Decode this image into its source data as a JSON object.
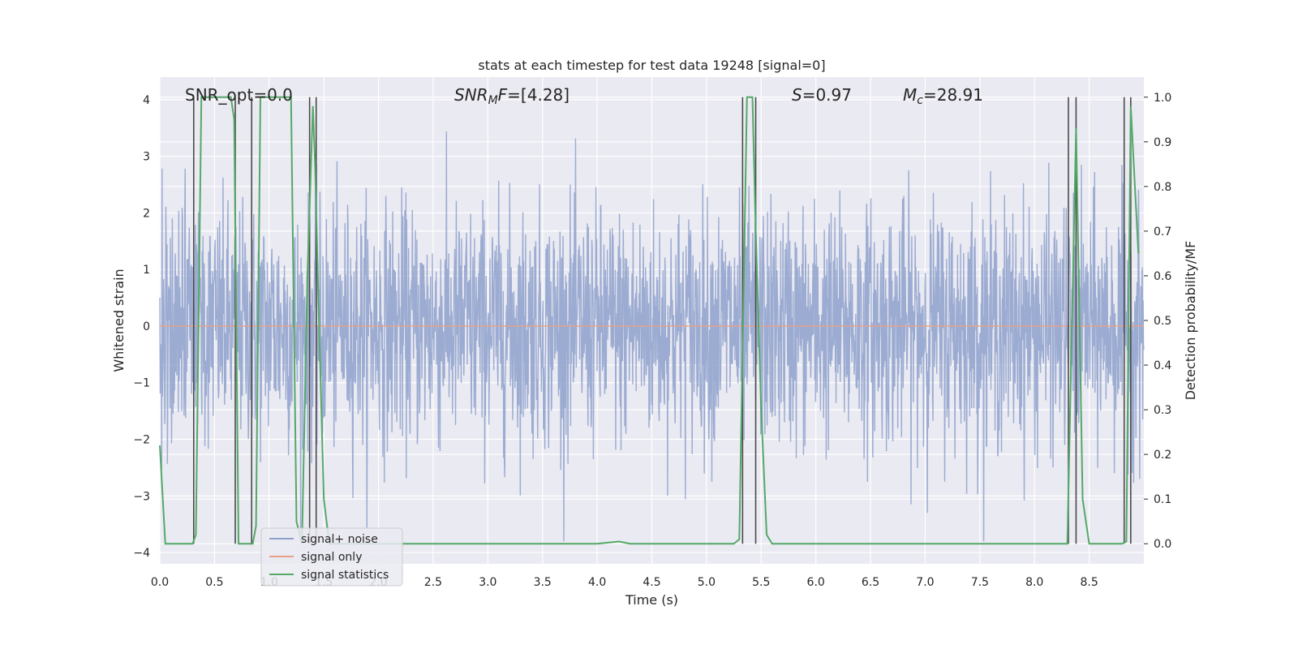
{
  "chart_data": {
    "type": "line",
    "title": "stats at each timestep for test data 19248 [signal=0]",
    "xlabel": "Time (s)",
    "ylabel_left": "Whitened strain",
    "ylabel_right": "Detection probability/MF",
    "xlim": [
      0.0,
      9.0
    ],
    "ylim_left": [
      -4.2,
      4.4
    ],
    "ylim_right": [
      -0.045,
      1.045
    ],
    "x_ticks": [
      "0.0",
      "0.5",
      "1.0",
      "1.5",
      "2.0",
      "2.5",
      "3.0",
      "3.5",
      "4.0",
      "4.5",
      "5.0",
      "5.5",
      "6.0",
      "6.5",
      "7.0",
      "7.5",
      "8.0",
      "8.5"
    ],
    "y_ticks_left": [
      "−4",
      "−3",
      "−2",
      "−1",
      "0",
      "1",
      "2",
      "3",
      "4"
    ],
    "y_ticks_right": [
      "0.0",
      "0.1",
      "0.2",
      "0.3",
      "0.4",
      "0.5",
      "0.6",
      "0.7",
      "0.8",
      "0.9",
      "1.0"
    ],
    "grid": true,
    "legend_position": "lower-left",
    "annotations": {
      "snr_opt": "SNR_opt=0.0",
      "snr_mf": "SNR_MF=[4.28]",
      "s": "S=0.97",
      "mc": "M_c=28.91"
    },
    "series": [
      {
        "name": "signal+ noise",
        "axis": "left",
        "color": "#8da0cb",
        "description_range": [
          -3.8,
          3.9
        ],
        "noise_seed": 19248
      },
      {
        "name": "signal only",
        "axis": "left",
        "color": "#e8a087",
        "x": [
          0.0,
          9.0
        ],
        "y": [
          0.0,
          0.0
        ]
      },
      {
        "name": "signal statistics",
        "axis": "right",
        "color": "#55a868",
        "x": [
          0.0,
          0.05,
          0.3,
          0.33,
          0.38,
          0.42,
          0.5,
          0.65,
          0.68,
          0.72,
          0.78,
          0.85,
          0.88,
          0.92,
          0.95,
          1.0,
          1.05,
          1.2,
          1.25,
          1.3,
          1.35,
          1.4,
          1.42,
          1.45,
          1.5,
          1.55,
          1.6,
          1.65,
          1.7,
          1.75,
          2.0,
          2.3,
          3.0,
          4.0,
          4.2,
          4.3,
          5.0,
          5.25,
          5.3,
          5.37,
          5.42,
          5.45,
          5.5,
          5.55,
          5.6,
          6.0,
          7.0,
          8.0,
          8.25,
          8.3,
          8.38,
          8.44,
          8.5,
          8.8,
          8.84,
          8.88,
          8.95
        ],
        "y": [
          0.22,
          0.0,
          0.0,
          0.02,
          1.0,
          1.0,
          1.0,
          1.0,
          0.95,
          0.0,
          0.0,
          0.0,
          0.04,
          1.0,
          1.0,
          1.0,
          1.0,
          1.0,
          0.05,
          0.0,
          0.6,
          0.98,
          0.85,
          0.55,
          0.1,
          0.0,
          0.0,
          0.0,
          0.0,
          0.0,
          0.0,
          0.0,
          0.0,
          0.0,
          0.005,
          0.0,
          0.0,
          0.0,
          0.01,
          1.0,
          1.0,
          0.7,
          0.3,
          0.02,
          0.0,
          0.0,
          0.0,
          0.0,
          0.0,
          0.0,
          0.93,
          0.1,
          0.0,
          0.0,
          0.005,
          0.98,
          0.65
        ]
      }
    ],
    "vertical_lines_x": [
      0.31,
      0.69,
      0.84,
      1.37,
      1.43,
      5.33,
      5.45,
      8.31,
      8.38,
      8.82,
      8.88
    ]
  }
}
